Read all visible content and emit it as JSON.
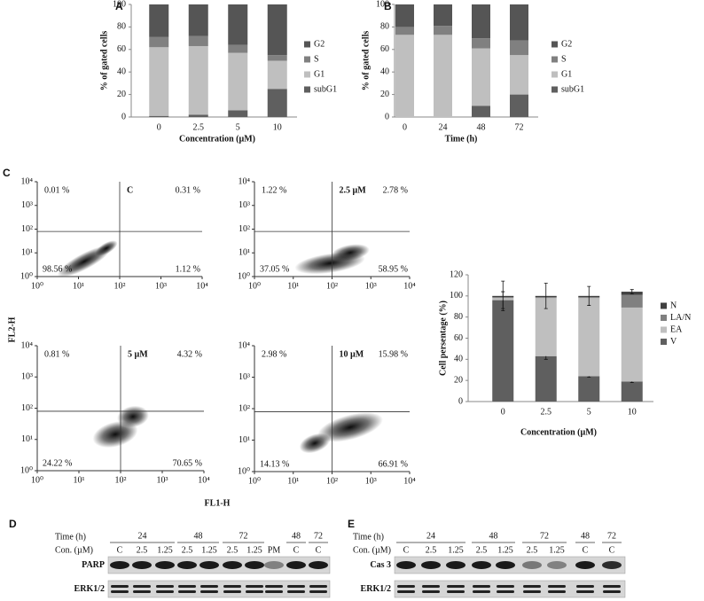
{
  "chart_data": [
    {
      "type": "bar",
      "stacked": true,
      "panel": "A",
      "y_label": "% of gated cells",
      "x_label": "Concentration (µM)",
      "categories": [
        "0",
        "2.5",
        "5",
        "10"
      ],
      "ylim": [
        0,
        100
      ],
      "yticks": [
        0,
        20,
        40,
        60,
        80,
        100
      ],
      "series": [
        {
          "name": "subG1",
          "color": "#5f5f5f",
          "values": [
            1,
            2,
            6,
            25
          ]
        },
        {
          "name": "G1",
          "color": "#bfbfbf",
          "values": [
            61,
            61,
            51,
            25
          ]
        },
        {
          "name": "S",
          "color": "#808080",
          "values": [
            9,
            9,
            7,
            5
          ]
        },
        {
          "name": "G2",
          "color": "#555555",
          "values": [
            29,
            28,
            36,
            45
          ]
        }
      ]
    },
    {
      "type": "bar",
      "stacked": true,
      "panel": "B",
      "y_label": "% of gated cells",
      "x_label": "Time (h)",
      "categories": [
        "0",
        "24",
        "48",
        "72"
      ],
      "ylim": [
        0,
        100
      ],
      "yticks": [
        0,
        20,
        40,
        60,
        80,
        100
      ],
      "series": [
        {
          "name": "subG1",
          "color": "#5f5f5f",
          "values": [
            0,
            0,
            10,
            20
          ]
        },
        {
          "name": "G1",
          "color": "#bfbfbf",
          "values": [
            73,
            73,
            51,
            35
          ]
        },
        {
          "name": "S",
          "color": "#808080",
          "values": [
            7,
            8,
            9,
            13
          ]
        },
        {
          "name": "G2",
          "color": "#555555",
          "values": [
            20,
            19,
            30,
            32
          ]
        }
      ]
    },
    {
      "type": "scatter",
      "title": "C",
      "log_x": true,
      "log_y": true,
      "xlim": [
        1,
        10000
      ],
      "ylim": [
        1,
        10000
      ],
      "gate": [
        100,
        80
      ],
      "xticks": [
        {
          "value": 1,
          "label": "10⁰"
        },
        {
          "value": 10,
          "label": "10¹"
        },
        {
          "value": 100,
          "label": "10²"
        },
        {
          "value": 1000,
          "label": "10³"
        },
        {
          "value": 10000,
          "label": "10⁴"
        }
      ],
      "yticks": [
        {
          "value": 1,
          "label": "10⁰"
        },
        {
          "value": 10,
          "label": "10¹"
        },
        {
          "value": 100,
          "label": "10²"
        },
        {
          "value": 1000,
          "label": "10³"
        },
        {
          "value": 10000,
          "label": "10⁴"
        }
      ],
      "quadrants": {
        "upper_left": "0.01 %",
        "upper_right": "0.31 %",
        "lower_left": "98.56 %",
        "lower_right": "1.12 %"
      }
    },
    {
      "type": "scatter",
      "title": "2.5 µM",
      "log_x": true,
      "log_y": true,
      "xlim": [
        1,
        10000
      ],
      "ylim": [
        1,
        10000
      ],
      "gate": [
        100,
        80
      ],
      "xticks": [
        {
          "value": 1,
          "label": "10⁰"
        },
        {
          "value": 10,
          "label": "10¹"
        },
        {
          "value": 100,
          "label": "10²"
        },
        {
          "value": 1000,
          "label": "10³"
        },
        {
          "value": 10000,
          "label": "10⁴"
        }
      ],
      "yticks": [
        {
          "value": 1,
          "label": "10⁰"
        },
        {
          "value": 10,
          "label": "10¹"
        },
        {
          "value": 100,
          "label": "10²"
        },
        {
          "value": 1000,
          "label": "10³"
        },
        {
          "value": 10000,
          "label": "10⁴"
        }
      ],
      "quadrants": {
        "upper_left": "1.22 %",
        "upper_right": "2.78 %",
        "lower_left": "37.05 %",
        "lower_right": "58.95 %"
      }
    },
    {
      "type": "scatter",
      "title": "5 µM",
      "log_x": true,
      "log_y": true,
      "xlim": [
        1,
        10000
      ],
      "ylim": [
        1,
        10000
      ],
      "gate": [
        100,
        80
      ],
      "xticks": [
        {
          "value": 1,
          "label": "10⁰"
        },
        {
          "value": 10,
          "label": "10¹"
        },
        {
          "value": 100,
          "label": "10²"
        },
        {
          "value": 1000,
          "label": "10³"
        },
        {
          "value": 10000,
          "label": "10⁴"
        }
      ],
      "yticks": [
        {
          "value": 1,
          "label": "10⁰"
        },
        {
          "value": 10,
          "label": "10¹"
        },
        {
          "value": 100,
          "label": "10²"
        },
        {
          "value": 1000,
          "label": "10³"
        },
        {
          "value": 10000,
          "label": "10⁴"
        }
      ],
      "quadrants": {
        "upper_left": "0.81 %",
        "upper_right": "4.32 %",
        "lower_left": "24.22 %",
        "lower_right": "70.65 %"
      }
    },
    {
      "type": "scatter",
      "title": "10 µM",
      "log_x": true,
      "log_y": true,
      "xlim": [
        1,
        10000
      ],
      "ylim": [
        1,
        10000
      ],
      "gate": [
        100,
        80
      ],
      "xticks": [
        {
          "value": 1,
          "label": "10⁰"
        },
        {
          "value": 10,
          "label": "10¹"
        },
        {
          "value": 100,
          "label": "10²"
        },
        {
          "value": 1000,
          "label": "10³"
        },
        {
          "value": 10000,
          "label": "10⁴"
        }
      ],
      "yticks": [
        {
          "value": 1,
          "label": "10⁰"
        },
        {
          "value": 10,
          "label": "10¹"
        },
        {
          "value": 100,
          "label": "10²"
        },
        {
          "value": 1000,
          "label": "10³"
        },
        {
          "value": 10000,
          "label": "10⁴"
        }
      ],
      "quadrants": {
        "upper_left": "2.98 %",
        "upper_right": "15.98 %",
        "lower_left": "14.13 %",
        "lower_right": "66.91 %"
      }
    },
    {
      "type": "bar",
      "stacked": true,
      "y_label": "Cell persentage (%)",
      "x_label": "Concentration (µM)",
      "categories": [
        "0",
        "2.5",
        "5",
        "10"
      ],
      "ylim": [
        0,
        120
      ],
      "yticks": [
        0,
        20,
        40,
        60,
        80,
        100,
        120
      ],
      "series": [
        {
          "name": "V",
          "color": "#5f5f5f",
          "values": [
            96,
            43,
            24,
            19
          ],
          "errors": [
            8,
            3,
            1,
            1
          ]
        },
        {
          "name": "EA",
          "color": "#bfbfbf",
          "values": [
            2,
            55,
            74,
            70
          ]
        },
        {
          "name": "LA/N",
          "color": "#808080",
          "values": [
            1,
            1,
            1,
            12
          ]
        },
        {
          "name": "N",
          "color": "#404040",
          "values": [
            1,
            1,
            1,
            3
          ],
          "errors": [
            14,
            12,
            9,
            2
          ]
        }
      ]
    }
  ],
  "flow_panel": {
    "letter": "C",
    "y_label": "FL2-H",
    "x_label": "FL1-H"
  },
  "blots": [
    {
      "letter": "D",
      "time_label": "Time (h)",
      "conc_label": "Con. (µM)",
      "groups": [
        {
          "label": "24",
          "lanes": [
            "C",
            "2.5",
            "1.25"
          ]
        },
        {
          "label": "48",
          "lanes": [
            "2.5",
            "1.25"
          ]
        },
        {
          "label": "72",
          "lanes": [
            "2.5",
            "1.25"
          ]
        },
        {
          "label": null,
          "lanes": [
            "PM"
          ]
        },
        {
          "label": "48",
          "lanes": [
            "C"
          ]
        },
        {
          "label": "72",
          "lanes": [
            "C"
          ]
        }
      ],
      "rows": [
        "PARP",
        "ERK1/2"
      ]
    },
    {
      "letter": "E",
      "time_label": "Time (h)",
      "conc_label": "Con. (µM)",
      "groups": [
        {
          "label": "24",
          "lanes": [
            "C",
            "2.5",
            "1.25"
          ]
        },
        {
          "label": "48",
          "lanes": [
            "2.5",
            "1.25"
          ]
        },
        {
          "label": "72",
          "lanes": [
            "2.5",
            "1.25"
          ]
        },
        {
          "label": "48",
          "lanes": [
            "C"
          ]
        },
        {
          "label": "72",
          "lanes": [
            "C"
          ]
        }
      ],
      "rows": [
        "Cas 3",
        "ERK1/2"
      ]
    }
  ]
}
